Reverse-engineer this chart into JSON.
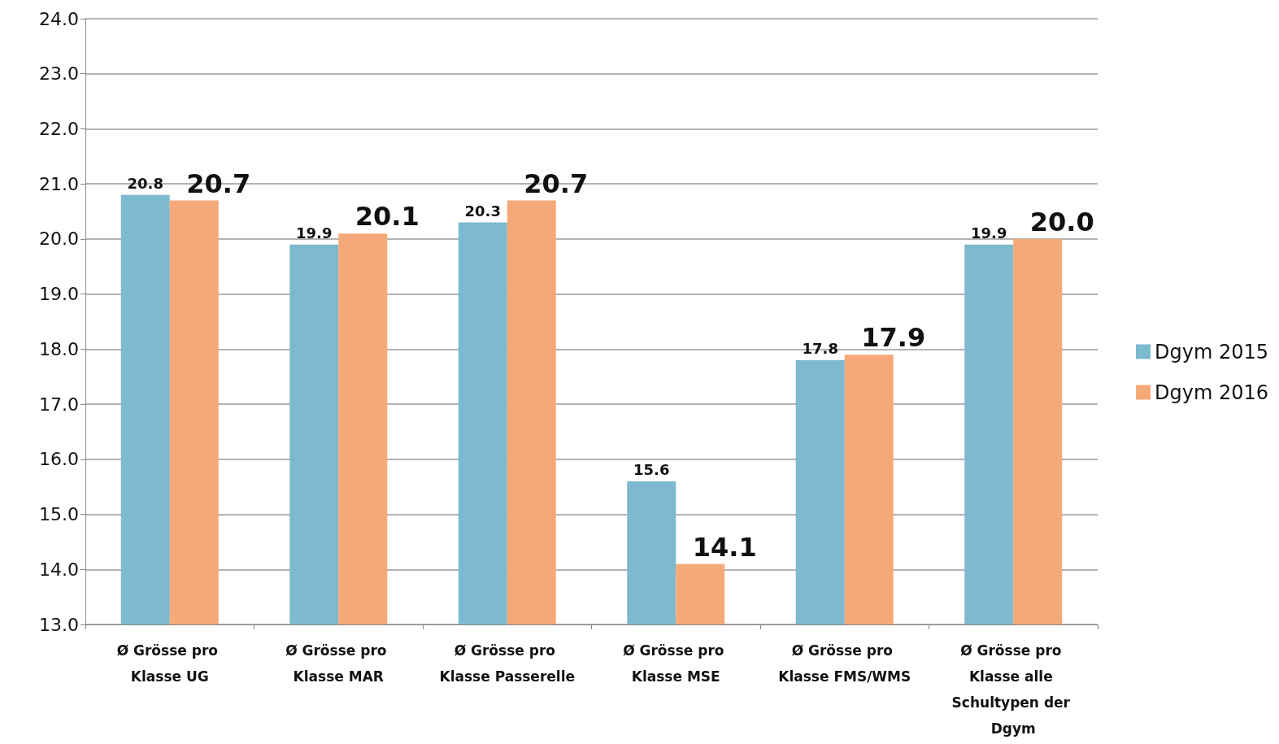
{
  "chart_data": {
    "type": "bar",
    "categories": [
      "Ø Grösse pro Klasse UG",
      "Ø Grösse pro Klasse MAR",
      "Ø Grösse pro Klasse Passerelle",
      "Ø Grösse pro Klasse MSE",
      "Ø Grösse pro Klasse FMS/WMS",
      "Ø Grösse pro Klasse alle Schultypen der Dgym"
    ],
    "series": [
      {
        "name": "Dgym 2015",
        "color": "#7db9cf",
        "values": [
          20.8,
          19.9,
          20.3,
          15.6,
          17.8,
          19.9
        ],
        "value_labels": [
          "20.8",
          "19.9",
          "20.3",
          "15.6",
          "17.8",
          "19.9"
        ]
      },
      {
        "name": "Dgym 2016",
        "color": "#f6a978",
        "values": [
          20.7,
          20.1,
          20.7,
          14.1,
          17.9,
          20.0
        ],
        "value_labels": [
          "20.7",
          "20.1",
          "20.7",
          "14.1",
          "17.9",
          "20.0"
        ]
      }
    ],
    "ylim": [
      13,
      24
    ],
    "yticks": [
      {
        "value": 13,
        "label": "13.0"
      },
      {
        "value": 14,
        "label": "14.0"
      },
      {
        "value": 15,
        "label": "15.0"
      },
      {
        "value": 16,
        "label": "16.0"
      },
      {
        "value": 17,
        "label": "17.0"
      },
      {
        "value": 18,
        "label": "18.0"
      },
      {
        "value": 19,
        "label": "19.0"
      },
      {
        "value": 20,
        "label": "20.0"
      },
      {
        "value": 21,
        "label": "21.0"
      },
      {
        "value": 22,
        "label": "22.0"
      },
      {
        "value": 23,
        "label": "23.0"
      },
      {
        "value": 24,
        "label": "24.0"
      }
    ],
    "grid": "y",
    "legend": "right"
  }
}
